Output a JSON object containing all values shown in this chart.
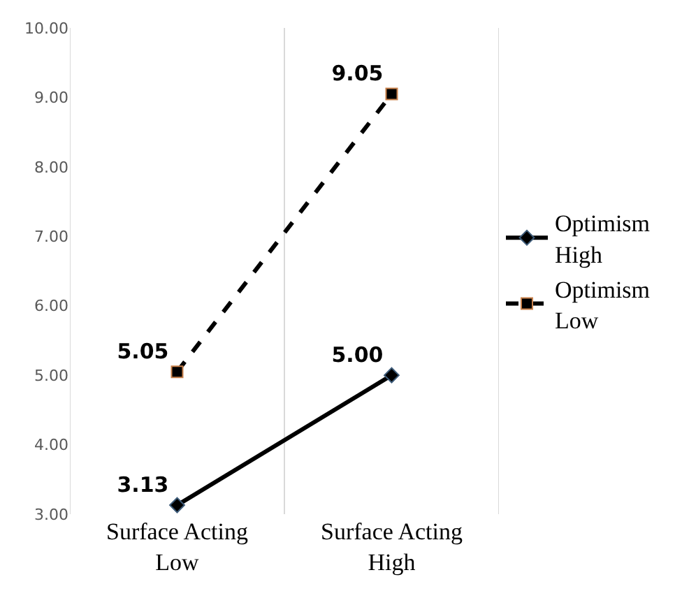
{
  "chart_data": {
    "type": "line",
    "categories": [
      "Surface Acting\nLow",
      "Surface Acting\nHigh"
    ],
    "series": [
      {
        "name": "Optimism\nHigh",
        "color": "#000000",
        "marker": "diamond",
        "line_style": "solid",
        "values": [
          3.13,
          5.0
        ],
        "value_labels": [
          "3.13",
          "5.00"
        ]
      },
      {
        "name": "Optimism\nLow",
        "color": "#000000",
        "marker": "square",
        "line_style": "dashed",
        "values": [
          5.05,
          9.05
        ],
        "value_labels": [
          "5.05",
          "9.05"
        ]
      }
    ],
    "ylim": [
      3,
      10
    ],
    "yticks": [
      {
        "value": 3,
        "label": "3.00"
      },
      {
        "value": 4,
        "label": "4.00"
      },
      {
        "value": 5,
        "label": "5.00"
      },
      {
        "value": 6,
        "label": "6.00"
      },
      {
        "value": 7,
        "label": "7.00"
      },
      {
        "value": 8,
        "label": "8.00"
      },
      {
        "value": 9,
        "label": "9.00"
      },
      {
        "value": 10,
        "label": "10.00"
      }
    ],
    "grid": "x",
    "legend": "right"
  }
}
